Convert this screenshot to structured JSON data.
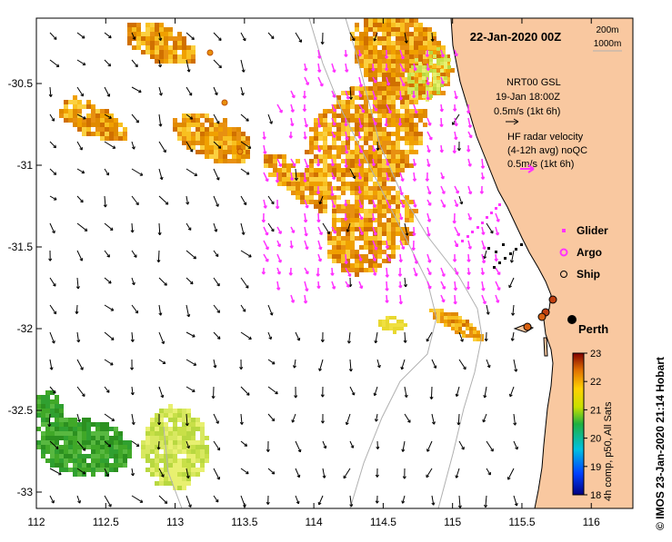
{
  "title": "22-Jan-2020 00Z",
  "depth_contours": [
    "200m",
    "1000m"
  ],
  "map": {
    "lon_min": 112,
    "lon_max": 116.3,
    "lat_min": -33.1,
    "lat_max": -30.1,
    "x_ticks": [
      "112",
      "112.5",
      "113",
      "113.5",
      "114",
      "114.5",
      "115",
      "115.5",
      "116"
    ],
    "y_ticks": [
      "-30.5",
      "-31",
      "-31.5",
      "-32",
      "-32.5",
      "-33"
    ]
  },
  "colors": {
    "land": "#f9c8a0",
    "ocean": "#ffffff",
    "gsl_arrow": "#000000",
    "radar_arrow": "#ff33ff",
    "glider": "#ff33ff",
    "ship_track": "#000000",
    "argo": "#ff33ff",
    "bathymetry": "#b0b0b0",
    "coast": "#000000"
  },
  "legend": {
    "gsl_line1": "NRT00 GSL",
    "gsl_line2": "19-Jan 18:00Z",
    "gsl_scale": "0.5m/s (1kt 6h)",
    "radar_line1": "HF radar velocity",
    "radar_line2": "(4-12h avg) noQC",
    "radar_scale": "0.5m/s (1kt 6h)",
    "glider": "Glider",
    "argo": "Argo",
    "ship": "Ship"
  },
  "place": "Perth",
  "sst_colorbar": {
    "title": "4h comp, p50, All Sats",
    "ticks": [
      "23",
      "22",
      "21",
      "20",
      "19",
      "18"
    ],
    "min": 18,
    "max": 23
  },
  "credit": "© IMOS 23-Jan-2020 21:14 Hobart"
}
